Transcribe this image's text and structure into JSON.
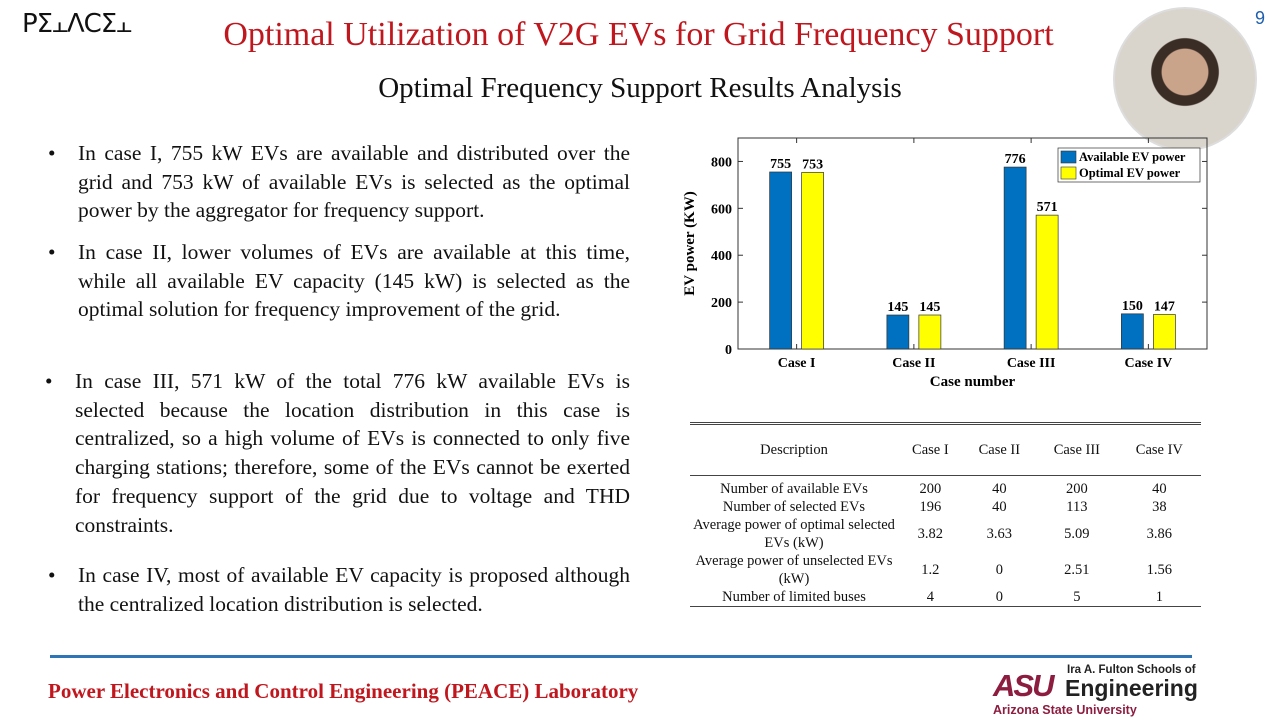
{
  "header": {
    "logo_text": "PΣ⫠ΛCΣ⫠",
    "title": "Optimal Utilization of V2G EVs for Grid Frequency Support",
    "subtitle": "Optimal Frequency Support Results Analysis",
    "page_number": "9"
  },
  "bullets": [
    "In case I, 755 kW EVs are available and distributed over the grid and 753 kW of available EVs is selected as the optimal power by the aggregator for frequency support.",
    "In case II, lower volumes of EVs are available at this time, while all available EV capacity (145 kW) is selected as the optimal solution for frequency improvement of the grid.",
    "In case III, 571 kW of the total 776 kW available EVs is selected because the location distribution in this case is centralized, so a high volume of EVs is connected to only five charging stations; therefore, some of the EVs cannot be exerted for frequency support of the grid due to voltage and THD constraints.",
    "In case IV, most of available EV capacity is proposed although the centralized location distribution is selected."
  ],
  "bullet_symbol": "•",
  "chart_data": {
    "type": "bar",
    "categories": [
      "Case I",
      "Case II",
      "Case III",
      "Case IV"
    ],
    "series": [
      {
        "name": "Available EV power",
        "values": [
          755,
          145,
          776,
          150
        ],
        "color": "#0070c0"
      },
      {
        "name": "Optimal EV power",
        "values": [
          753,
          145,
          571,
          147
        ],
        "color": "#ffff00"
      }
    ],
    "xlabel": "Case number",
    "ylabel": "EV power (KW)",
    "ylim": [
      0,
      900
    ],
    "yticks": [
      0,
      200,
      400,
      600,
      800
    ],
    "grid": false,
    "legend": "top-right"
  },
  "table": {
    "headers": [
      "Description",
      "Case I",
      "Case II",
      "Case III",
      "Case IV"
    ],
    "rows": [
      [
        "Number of available EVs",
        "200",
        "40",
        "200",
        "40"
      ],
      [
        "Number of selected EVs",
        "196",
        "40",
        "113",
        "38"
      ],
      [
        "Average power of optimal selected EVs (kW)",
        "3.82",
        "3.63",
        "5.09",
        "3.86"
      ],
      [
        "Average power of unselected EVs (kW)",
        "1.2",
        "0",
        "2.51",
        "1.56"
      ],
      [
        "Number of limited buses",
        "4",
        "0",
        "5",
        "1"
      ]
    ]
  },
  "footer": {
    "lab": "Power Electronics and Control Engineering (PEACE) Laboratory",
    "asu_mark": "ASU",
    "asu_line1": "Ira A. Fulton Schools of",
    "asu_line2": "Engineering",
    "asu_line3": "Arizona State University"
  },
  "colors": {
    "title": "#c0161d",
    "rule": "#2e75b6",
    "asu": "#8c1d40"
  }
}
